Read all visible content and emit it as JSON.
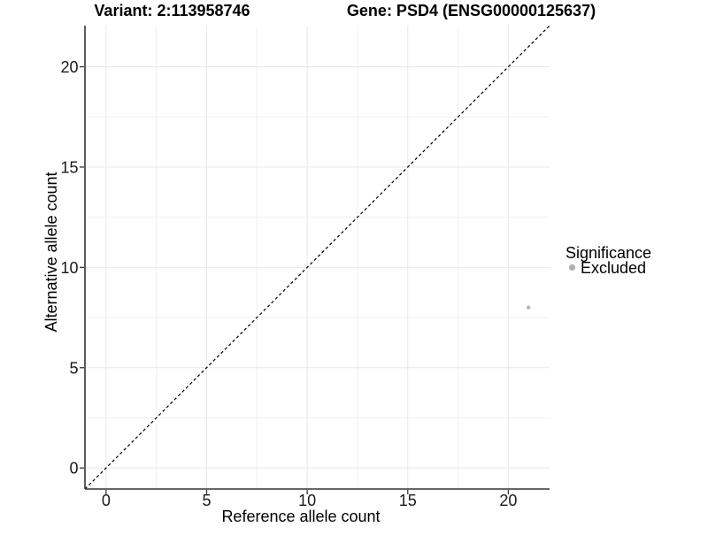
{
  "chart_data": {
    "type": "scatter",
    "title_parts": {
      "variant": "Variant: 2:113958746",
      "gene": "Gene: PSD4 (ENSG00000125637)"
    },
    "xlabel": "Reference allele count",
    "ylabel": "Alternative allele count",
    "xlim": [
      -1.05,
      22.05
    ],
    "ylim": [
      -1.05,
      22.05
    ],
    "x_ticks": [
      0,
      5,
      10,
      15,
      20
    ],
    "y_ticks": [
      0,
      5,
      10,
      15,
      20
    ],
    "x_minor_gridlines": [
      2.5,
      7.5,
      12.5,
      17.5
    ],
    "y_minor_gridlines": [
      2.5,
      7.5,
      12.5,
      17.5
    ],
    "grid": true,
    "points": [
      {
        "x": 21,
        "y": 8,
        "significance": "Excluded"
      }
    ],
    "identity_line": {
      "slope": 1,
      "intercept": 0,
      "style": "dashed",
      "color": "#000000"
    },
    "legend": {
      "title": "Significance",
      "position": "right",
      "entries": [
        {
          "label": "Excluded",
          "color": "#b0b0b0"
        }
      ]
    },
    "colors": {
      "point_excluded": "#b9b9b9",
      "grid_major": "#e8e8e8",
      "grid_minor": "#f0f0f0",
      "axis": "#333333",
      "tick_label": "#1a1a1a"
    }
  }
}
